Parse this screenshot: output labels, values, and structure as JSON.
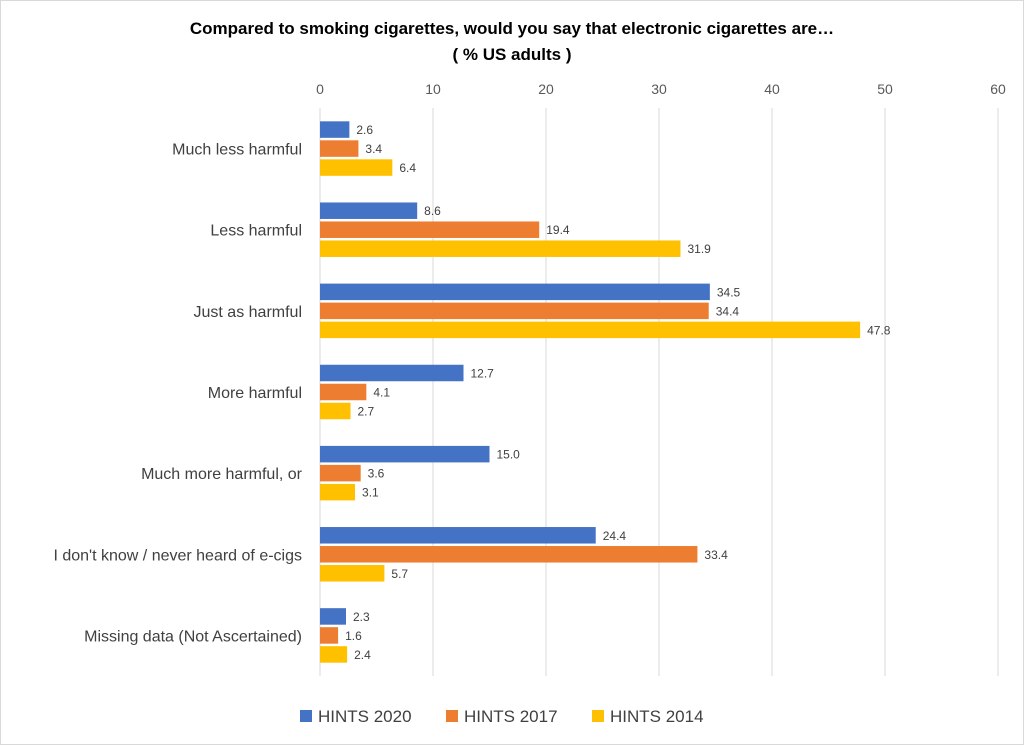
{
  "chart_data": {
    "type": "bar",
    "orientation": "horizontal",
    "title": "Compared to smoking cigarettes, would you say that electronic cigarettes are…",
    "subtitle": "( % US adults )",
    "categories": [
      "Much less harmful",
      "Less harmful",
      "Just as harmful",
      "More harmful",
      "Much more harmful, or",
      "I don't know / never heard of e-cigs",
      "Missing data (Not Ascertained)"
    ],
    "series": [
      {
        "name": "HINTS 2020",
        "color": "#4472C4",
        "values": [
          2.6,
          8.6,
          34.5,
          12.7,
          15.0,
          24.4,
          2.3
        ],
        "labels": [
          "2.6",
          "8.6",
          "34.5",
          "12.7",
          "15.0",
          "24.4",
          "2.3"
        ]
      },
      {
        "name": "HINTS 2017",
        "color": "#ED7D31",
        "values": [
          3.4,
          19.4,
          34.4,
          4.1,
          3.6,
          33.4,
          1.6
        ],
        "labels": [
          "3.4",
          "19.4",
          "34.4",
          "4.1",
          "3.6",
          "33.4",
          "1.6"
        ]
      },
      {
        "name": "HINTS 2014",
        "color": "#FFC000",
        "values": [
          6.4,
          31.9,
          47.8,
          2.7,
          3.1,
          5.7,
          2.4
        ],
        "labels": [
          "6.4",
          "31.9",
          "47.8",
          "2.7",
          "3.1",
          "5.7",
          "2.4"
        ]
      }
    ],
    "xlim": [
      0,
      60
    ],
    "xticks": [
      "0",
      "10",
      "20",
      "30",
      "40",
      "50",
      "60"
    ],
    "xtick_values": [
      0,
      10,
      20,
      30,
      40,
      50,
      60
    ],
    "axis_position": "top",
    "grid": true,
    "legend": "bottom"
  }
}
